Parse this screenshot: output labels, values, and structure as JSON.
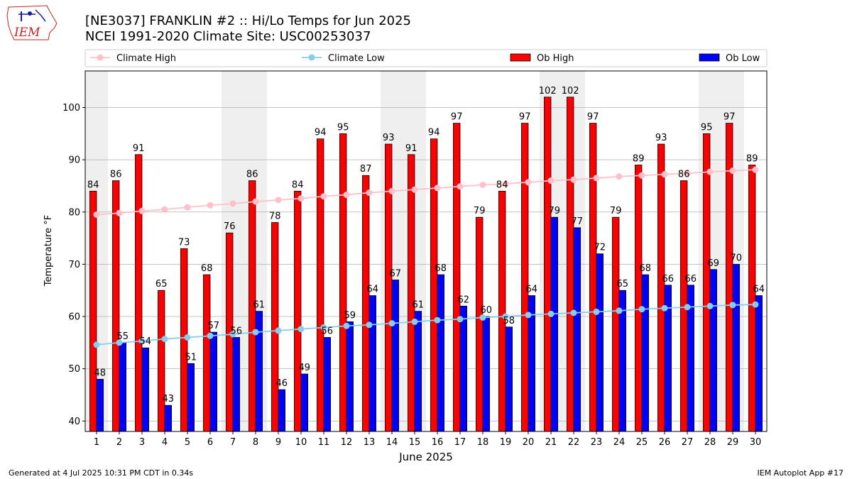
{
  "header": {
    "title_line1": "[NE3037] FRANKLIN #2 :: Hi/Lo Temps for Jun 2025",
    "title_line2": "NCEI 1991-2020 Climate Site: USC00253037",
    "logo_text": "IEM"
  },
  "footer": {
    "left": "Generated at 4 Jul 2025 10:31 PM CDT in 0.34s",
    "right": "IEM Autoplot App #17"
  },
  "colors": {
    "ob_high": "#ff0000",
    "ob_low": "#0000ff",
    "climate_high": "#ffc0cb",
    "climate_low": "#87ceeb",
    "weekend_band": "#efefef",
    "grid": "#b0b0b0"
  },
  "chart_data": {
    "type": "bar",
    "xlabel": "June 2025",
    "ylabel": "Temperature °F",
    "ylim": [
      38,
      107
    ],
    "yticks": [
      40,
      50,
      60,
      70,
      80,
      90,
      100
    ],
    "grid": "horizontal",
    "legend_position": "top",
    "categories": [
      "1",
      "2",
      "3",
      "4",
      "5",
      "6",
      "7",
      "8",
      "9",
      "10",
      "11",
      "12",
      "13",
      "14",
      "15",
      "16",
      "17",
      "18",
      "19",
      "20",
      "21",
      "22",
      "23",
      "24",
      "25",
      "26",
      "27",
      "28",
      "29",
      "30"
    ],
    "shaded_days": [
      1,
      7,
      8,
      14,
      15,
      21,
      22,
      28,
      29
    ],
    "series": [
      {
        "name": "Climate High",
        "kind": "line",
        "values": [
          79.5,
          79.8,
          80.2,
          80.5,
          80.9,
          81.3,
          81.6,
          82.0,
          82.3,
          82.6,
          83.0,
          83.3,
          83.7,
          84.0,
          84.3,
          84.6,
          84.9,
          85.2,
          85.4,
          85.7,
          86.0,
          86.2,
          86.5,
          86.8,
          87.0,
          87.2,
          87.4,
          87.7,
          87.9,
          88.1
        ]
      },
      {
        "name": "Climate Low",
        "kind": "line",
        "values": [
          54.6,
          55.0,
          55.3,
          55.7,
          56.0,
          56.3,
          56.6,
          57.0,
          57.3,
          57.6,
          57.9,
          58.2,
          58.4,
          58.7,
          59.0,
          59.3,
          59.5,
          59.8,
          60.0,
          60.3,
          60.5,
          60.7,
          60.9,
          61.1,
          61.4,
          61.6,
          61.8,
          62.0,
          62.2,
          62.3
        ]
      },
      {
        "name": "Ob High",
        "kind": "bar",
        "values": [
          84,
          86,
          91,
          65,
          73,
          68,
          76,
          86,
          78,
          84,
          94,
          95,
          87,
          93,
          91,
          94,
          97,
          79,
          84,
          97,
          102,
          102,
          97,
          79,
          89,
          93,
          86,
          95,
          97,
          89
        ]
      },
      {
        "name": "Ob Low",
        "kind": "bar",
        "values": [
          48,
          55,
          54,
          43,
          51,
          57,
          56,
          61,
          46,
          49,
          56,
          59,
          64,
          67,
          61,
          68,
          62,
          60,
          58,
          64,
          79,
          77,
          72,
          65,
          68,
          66,
          66,
          69,
          70,
          64
        ]
      }
    ]
  }
}
